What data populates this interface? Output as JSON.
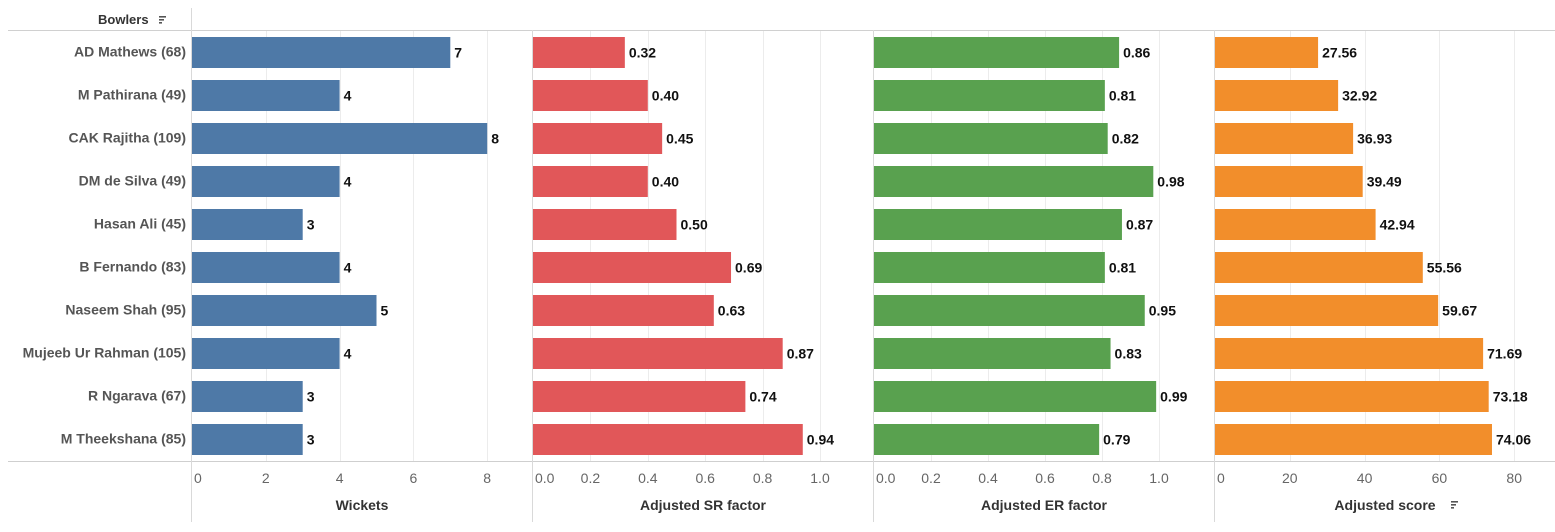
{
  "chart_data": {
    "type": "bar",
    "orientation": "horizontal",
    "header": "Bowlers",
    "sort_icon": "sort-descending-icon",
    "categories": [
      "AD Mathews (68)",
      "M Pathirana (49)",
      "CAK Rajitha (109)",
      "DM de Silva (49)",
      "Hasan Ali (45)",
      "B Fernando (83)",
      "Naseem Shah (95)",
      "Mujeeb Ur Rahman (105)",
      "R Ngarava (67)",
      "M Theekshana (85)"
    ],
    "panels": [
      {
        "name": "Wickets",
        "color": "#4e79a7",
        "xlim": [
          0,
          9
        ],
        "ticks": [
          0,
          2,
          4,
          6,
          8
        ],
        "tick_labels": [
          "0",
          "2",
          "4",
          "6",
          "8"
        ],
        "values": [
          7,
          4,
          8,
          4,
          3,
          4,
          5,
          4,
          3,
          3
        ],
        "labels": [
          "7",
          "4",
          "8",
          "4",
          "3",
          "4",
          "5",
          "4",
          "3",
          "3"
        ],
        "sort_icon": false
      },
      {
        "name": "Adjusted SR factor",
        "color": "#e15759",
        "xlim": [
          0,
          1.15
        ],
        "ticks": [
          0,
          0.2,
          0.4,
          0.6,
          0.8,
          1.0
        ],
        "tick_labels": [
          "0.0",
          "0.2",
          "0.4",
          "0.6",
          "0.8",
          "1.0"
        ],
        "values": [
          0.32,
          0.4,
          0.45,
          0.4,
          0.5,
          0.69,
          0.63,
          0.87,
          0.74,
          0.94
        ],
        "labels": [
          "0.32",
          "0.40",
          "0.45",
          "0.40",
          "0.50",
          "0.69",
          "0.63",
          "0.87",
          "0.74",
          "0.94"
        ],
        "sort_icon": false
      },
      {
        "name": "Adjusted ER factor",
        "color": "#59a14f",
        "xlim": [
          0,
          1.2
        ],
        "ticks": [
          0,
          0.2,
          0.4,
          0.6,
          0.8,
          1.0
        ],
        "tick_labels": [
          "0.0",
          "0.2",
          "0.4",
          "0.6",
          "0.8",
          "1.0"
        ],
        "values": [
          0.86,
          0.81,
          0.82,
          0.98,
          0.87,
          0.81,
          0.95,
          0.83,
          0.99,
          0.79
        ],
        "labels": [
          "0.86",
          "0.81",
          "0.82",
          "0.98",
          "0.87",
          "0.81",
          "0.95",
          "0.83",
          "0.99",
          "0.79"
        ],
        "sort_icon": false
      },
      {
        "name": "Adjusted score",
        "color": "#f28e2b",
        "xlim": [
          0,
          90
        ],
        "ticks": [
          0,
          20,
          40,
          60,
          80
        ],
        "tick_labels": [
          "0",
          "20",
          "40",
          "60",
          "80"
        ],
        "values": [
          27.56,
          32.92,
          36.93,
          39.49,
          42.94,
          55.56,
          59.67,
          71.69,
          73.18,
          74.06
        ],
        "labels": [
          "27.56",
          "32.92",
          "36.93",
          "39.49",
          "42.94",
          "55.56",
          "59.67",
          "71.69",
          "73.18",
          "74.06"
        ],
        "sort_icon": true
      }
    ],
    "grid": true,
    "legend": "none"
  }
}
